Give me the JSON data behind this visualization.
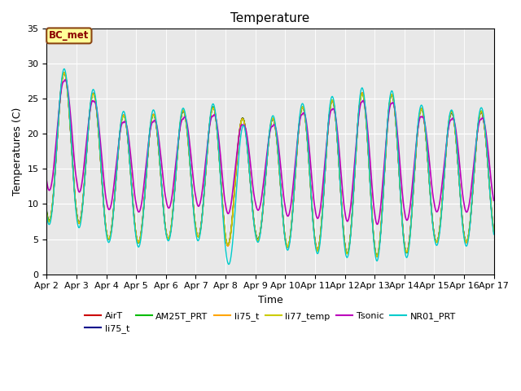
{
  "title": "Temperature",
  "xlabel": "Time",
  "ylabel": "Temperatures (C)",
  "ylim": [
    0,
    35
  ],
  "n_days": 15,
  "pts_per_day": 144,
  "xtick_labels": [
    "Apr 2",
    "Apr 3",
    "Apr 4",
    "Apr 5",
    "Apr 6",
    "Apr 7",
    "Apr 8",
    "Apr 9",
    "Apr 10",
    "Apr 11",
    "Apr 12",
    "Apr 13",
    "Apr 14",
    "Apr 15",
    "Apr 16",
    "Apr 17"
  ],
  "annotation_text": "BC_met",
  "annotation_fc": "#FFFF99",
  "annotation_ec": "#8B4513",
  "annotation_tc": "#8B0000",
  "bg_color": "#E8E8E8",
  "series": [
    {
      "label": "AirT",
      "color": "#CC0000",
      "lw": 1.0
    },
    {
      "label": "li75_t",
      "color": "#00008B",
      "lw": 1.0
    },
    {
      "label": "AM25T_PRT",
      "color": "#00BB00",
      "lw": 1.0
    },
    {
      "label": "li75_t",
      "color": "#FFA500",
      "lw": 1.0
    },
    {
      "label": "li77_temp",
      "color": "#CCCC00",
      "lw": 1.0
    },
    {
      "label": "Tsonic",
      "color": "#BB00BB",
      "lw": 1.2
    },
    {
      "label": "NR01_PRT",
      "color": "#00CCCC",
      "lw": 1.0
    }
  ]
}
